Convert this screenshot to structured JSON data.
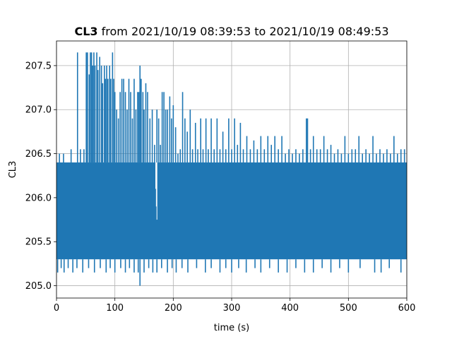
{
  "chart_data": {
    "type": "line",
    "title_bold": "CL3",
    "title_rest": " from 2021/10/19 08:39:53 to 2021/10/19 08:49:53",
    "xlabel": "time (s)",
    "ylabel": "CL3",
    "xlim": [
      0,
      600
    ],
    "ylim": [
      204.86,
      207.78
    ],
    "xticks": [
      0,
      100,
      200,
      300,
      400,
      500,
      600
    ],
    "yticks": [
      205.0,
      205.5,
      206.0,
      206.5,
      207.0,
      207.5
    ],
    "xtick_labels": [
      "0",
      "100",
      "200",
      "300",
      "400",
      "500",
      "600"
    ],
    "ytick_labels": [
      "205.0",
      "205.5",
      "206.0",
      "206.5",
      "207.0",
      "207.5"
    ],
    "grid": true,
    "series": [
      {
        "color": "#1f77b4",
        "band_low": 205.3,
        "band_high": 206.4,
        "dips": [
          {
            "x": 2,
            "y": 205.15
          },
          {
            "x": 8,
            "y": 205.2
          },
          {
            "x": 13,
            "y": 205.15
          },
          {
            "x": 20,
            "y": 205.2
          },
          {
            "x": 28,
            "y": 205.15
          },
          {
            "x": 35,
            "y": 205.2
          },
          {
            "x": 45,
            "y": 205.15
          },
          {
            "x": 55,
            "y": 205.2
          },
          {
            "x": 65,
            "y": 205.15
          },
          {
            "x": 75,
            "y": 205.2
          },
          {
            "x": 85,
            "y": 205.15
          },
          {
            "x": 92,
            "y": 205.2
          },
          {
            "x": 100,
            "y": 205.15
          },
          {
            "x": 110,
            "y": 205.2
          },
          {
            "x": 118,
            "y": 205.15
          },
          {
            "x": 125,
            "y": 205.2
          },
          {
            "x": 133,
            "y": 205.15
          },
          {
            "x": 140,
            "y": 205.15
          },
          {
            "x": 143,
            "y": 205.0
          },
          {
            "x": 150,
            "y": 205.15
          },
          {
            "x": 158,
            "y": 205.2
          },
          {
            "x": 165,
            "y": 205.15
          },
          {
            "x": 172,
            "y": 205.15
          },
          {
            "x": 180,
            "y": 205.2
          },
          {
            "x": 190,
            "y": 205.15
          },
          {
            "x": 198,
            "y": 205.2
          },
          {
            "x": 205,
            "y": 205.15
          },
          {
            "x": 215,
            "y": 205.2
          },
          {
            "x": 225,
            "y": 205.15
          },
          {
            "x": 240,
            "y": 205.2
          },
          {
            "x": 255,
            "y": 205.15
          },
          {
            "x": 265,
            "y": 205.2
          },
          {
            "x": 280,
            "y": 205.15
          },
          {
            "x": 290,
            "y": 205.2
          },
          {
            "x": 300,
            "y": 205.15
          },
          {
            "x": 312,
            "y": 205.2
          },
          {
            "x": 325,
            "y": 205.15
          },
          {
            "x": 340,
            "y": 205.2
          },
          {
            "x": 350,
            "y": 205.15
          },
          {
            "x": 365,
            "y": 205.2
          },
          {
            "x": 380,
            "y": 205.15
          },
          {
            "x": 395,
            "y": 205.15
          },
          {
            "x": 410,
            "y": 205.2
          },
          {
            "x": 425,
            "y": 205.15
          },
          {
            "x": 440,
            "y": 205.15
          },
          {
            "x": 455,
            "y": 205.2
          },
          {
            "x": 470,
            "y": 205.15
          },
          {
            "x": 485,
            "y": 205.2
          },
          {
            "x": 500,
            "y": 205.15
          },
          {
            "x": 520,
            "y": 205.2
          },
          {
            "x": 545,
            "y": 205.15
          },
          {
            "x": 556,
            "y": 205.15
          },
          {
            "x": 570,
            "y": 205.2
          },
          {
            "x": 590,
            "y": 205.15
          }
        ],
        "spikes": [
          {
            "x": 5,
            "y": 206.5
          },
          {
            "x": 12,
            "y": 206.5
          },
          {
            "x": 25,
            "y": 206.55
          },
          {
            "x": 36,
            "y": 207.65
          },
          {
            "x": 41,
            "y": 206.55
          },
          {
            "x": 47,
            "y": 206.55
          },
          {
            "x": 51,
            "y": 207.65
          },
          {
            "x": 53,
            "y": 207.65
          },
          {
            "x": 56,
            "y": 207.4
          },
          {
            "x": 58,
            "y": 207.65
          },
          {
            "x": 60,
            "y": 207.65
          },
          {
            "x": 62,
            "y": 207.5
          },
          {
            "x": 64,
            "y": 207.65
          },
          {
            "x": 66,
            "y": 207.5
          },
          {
            "x": 69,
            "y": 207.65
          },
          {
            "x": 71,
            "y": 207.45
          },
          {
            "x": 74,
            "y": 207.6
          },
          {
            "x": 77,
            "y": 207.5
          },
          {
            "x": 79,
            "y": 207.3
          },
          {
            "x": 82,
            "y": 207.5
          },
          {
            "x": 84,
            "y": 207.35
          },
          {
            "x": 86,
            "y": 207.5
          },
          {
            "x": 88,
            "y": 207.35
          },
          {
            "x": 91,
            "y": 207.5
          },
          {
            "x": 93,
            "y": 207.35
          },
          {
            "x": 96,
            "y": 207.65
          },
          {
            "x": 98,
            "y": 207.35
          },
          {
            "x": 100,
            "y": 207.2
          },
          {
            "x": 103,
            "y": 207.0
          },
          {
            "x": 106,
            "y": 206.9
          },
          {
            "x": 109,
            "y": 207.2
          },
          {
            "x": 112,
            "y": 207.35
          },
          {
            "x": 115,
            "y": 207.35
          },
          {
            "x": 118,
            "y": 207.2
          },
          {
            "x": 121,
            "y": 207.0
          },
          {
            "x": 124,
            "y": 207.35
          },
          {
            "x": 127,
            "y": 207.2
          },
          {
            "x": 130,
            "y": 206.9
          },
          {
            "x": 133,
            "y": 207.35
          },
          {
            "x": 136,
            "y": 207.0
          },
          {
            "x": 139,
            "y": 207.2
          },
          {
            "x": 141,
            "y": 207.2
          },
          {
            "x": 143,
            "y": 207.5
          },
          {
            "x": 145,
            "y": 207.35
          },
          {
            "x": 148,
            "y": 207.2
          },
          {
            "x": 150,
            "y": 207.0
          },
          {
            "x": 153,
            "y": 207.3
          },
          {
            "x": 156,
            "y": 207.2
          },
          {
            "x": 160,
            "y": 206.9
          },
          {
            "x": 164,
            "y": 207.0
          },
          {
            "x": 168,
            "y": 206.6
          },
          {
            "x": 172,
            "y": 207.0
          },
          {
            "x": 175,
            "y": 206.9
          },
          {
            "x": 178,
            "y": 206.6
          },
          {
            "x": 181,
            "y": 207.2
          },
          {
            "x": 184,
            "y": 207.2
          },
          {
            "x": 187,
            "y": 207.0
          },
          {
            "x": 190,
            "y": 207.0
          },
          {
            "x": 194,
            "y": 207.15
          },
          {
            "x": 197,
            "y": 206.9
          },
          {
            "x": 200,
            "y": 207.05
          },
          {
            "x": 204,
            "y": 206.8
          },
          {
            "x": 208,
            "y": 206.5
          },
          {
            "x": 212,
            "y": 206.55
          },
          {
            "x": 216,
            "y": 207.2
          },
          {
            "x": 220,
            "y": 206.9
          },
          {
            "x": 224,
            "y": 206.75
          },
          {
            "x": 229,
            "y": 207.0
          },
          {
            "x": 233,
            "y": 206.55
          },
          {
            "x": 238,
            "y": 206.85
          },
          {
            "x": 242,
            "y": 206.55
          },
          {
            "x": 247,
            "y": 206.9
          },
          {
            "x": 251,
            "y": 206.55
          },
          {
            "x": 256,
            "y": 206.9
          },
          {
            "x": 260,
            "y": 206.55
          },
          {
            "x": 265,
            "y": 206.9
          },
          {
            "x": 270,
            "y": 206.55
          },
          {
            "x": 275,
            "y": 206.9
          },
          {
            "x": 280,
            "y": 206.55
          },
          {
            "x": 285,
            "y": 206.75
          },
          {
            "x": 290,
            "y": 206.55
          },
          {
            "x": 295,
            "y": 206.9
          },
          {
            "x": 300,
            "y": 206.55
          },
          {
            "x": 305,
            "y": 206.9
          },
          {
            "x": 310,
            "y": 206.6
          },
          {
            "x": 315,
            "y": 206.85
          },
          {
            "x": 320,
            "y": 206.55
          },
          {
            "x": 326,
            "y": 206.7
          },
          {
            "x": 332,
            "y": 206.55
          },
          {
            "x": 338,
            "y": 206.65
          },
          {
            "x": 344,
            "y": 206.55
          },
          {
            "x": 350,
            "y": 206.7
          },
          {
            "x": 356,
            "y": 206.55
          },
          {
            "x": 362,
            "y": 206.7
          },
          {
            "x": 368,
            "y": 206.6
          },
          {
            "x": 374,
            "y": 206.7
          },
          {
            "x": 380,
            "y": 206.55
          },
          {
            "x": 386,
            "y": 206.7
          },
          {
            "x": 392,
            "y": 206.5
          },
          {
            "x": 398,
            "y": 206.55
          },
          {
            "x": 404,
            "y": 206.5
          },
          {
            "x": 410,
            "y": 206.55
          },
          {
            "x": 416,
            "y": 206.5
          },
          {
            "x": 422,
            "y": 206.55
          },
          {
            "x": 428,
            "y": 206.9
          },
          {
            "x": 430,
            "y": 206.9
          },
          {
            "x": 435,
            "y": 206.55
          },
          {
            "x": 440,
            "y": 206.7
          },
          {
            "x": 446,
            "y": 206.55
          },
          {
            "x": 452,
            "y": 206.55
          },
          {
            "x": 458,
            "y": 206.7
          },
          {
            "x": 464,
            "y": 206.55
          },
          {
            "x": 470,
            "y": 206.6
          },
          {
            "x": 476,
            "y": 206.5
          },
          {
            "x": 482,
            "y": 206.55
          },
          {
            "x": 488,
            "y": 206.5
          },
          {
            "x": 494,
            "y": 206.7
          },
          {
            "x": 500,
            "y": 206.5
          },
          {
            "x": 506,
            "y": 206.55
          },
          {
            "x": 512,
            "y": 206.55
          },
          {
            "x": 518,
            "y": 206.7
          },
          {
            "x": 524,
            "y": 206.5
          },
          {
            "x": 530,
            "y": 206.55
          },
          {
            "x": 536,
            "y": 206.5
          },
          {
            "x": 542,
            "y": 206.7
          },
          {
            "x": 548,
            "y": 206.5
          },
          {
            "x": 554,
            "y": 206.55
          },
          {
            "x": 560,
            "y": 206.5
          },
          {
            "x": 566,
            "y": 206.55
          },
          {
            "x": 572,
            "y": 206.5
          },
          {
            "x": 578,
            "y": 206.7
          },
          {
            "x": 584,
            "y": 206.5
          },
          {
            "x": 590,
            "y": 206.55
          },
          {
            "x": 596,
            "y": 206.55
          }
        ],
        "notches": [
          {
            "x": 170,
            "y": 206.1
          },
          {
            "x": 171,
            "y": 205.9
          },
          {
            "x": 172,
            "y": 205.75
          }
        ]
      }
    ]
  }
}
